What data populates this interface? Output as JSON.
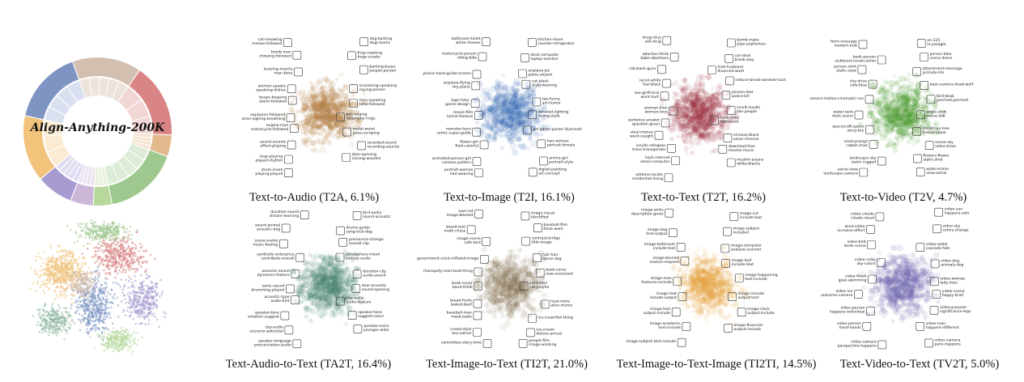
{
  "title": "Align-Anything-200K",
  "donut_colors": {
    "outer": [
      "#d98585",
      "#e3b98e",
      "#9fc88f",
      "#b7d89a",
      "#cdb7d8",
      "#a89bd0",
      "#f1c37b",
      "#7e95c4",
      "#d3bfb0"
    ],
    "inner": [
      "#f2d6d6",
      "#f4e3cf",
      "#dcecd6",
      "#e9f2dc",
      "#eae2f0",
      "#e1dcf2",
      "#faebd2",
      "#d9e0ef",
      "#ece3dc"
    ]
  },
  "panels": [
    {
      "caption": "Text-to-Audio (T2A, 6.1%)",
      "color": "#b0793a",
      "labels": [
        "cat-meowing meows-followed",
        "dog-barking dogs-barks",
        "bomb-man chirping-followed",
        "frog-croaking frogs-croaks",
        "buzzing-insects man-bees",
        "barking-burps people-person",
        "woman-speaks speaking-dishes",
        "screaming-speaking saying-person",
        "beeps-beeping alarm-followed",
        "man-speaking talks-followed",
        "explosion-followed siren-sighing-breathing",
        "bell-ringing telephone-rings",
        "engine-man motorcycle-followed",
        "metal-wood glass-scraping",
        "sound-sounds effect-playing",
        "recorded-sound recording-sounds",
        "loop-playing played-rhythm",
        "door-opening closing-wooden",
        "drum-snare playing-played"
      ]
    },
    {
      "caption": "Text-to-Image (T2I, 16.1%)",
      "color": "#3f6fb6",
      "labels": [
        "bathroom-toilet white-shower",
        "kitchen-stove counter-refrigerator",
        "motorcycle-person riding-bike",
        "desk-computer laptop-monitor",
        "phone-hand-guitar-screen",
        "airplane-jet plane-airport",
        "airplane-flying sky-plane",
        "cat-black style-wearing",
        "logo-futur game-design",
        "tee-funny art-humor",
        "movie-film horror-famous",
        "detailed-lighting wrong-style",
        "monster-hero comic-super-guide",
        "art-game-poster-illuminati",
        "flower-girl field-colorful",
        "hair-woman portrait-female",
        "animated-person-girl cartoon-pattern",
        "anime-girl portrait-style",
        "portrait-woman hair-wearing",
        "digital-painting art-concept"
      ]
    },
    {
      "caption": "Text-to-Text (T2T, 16.2%)",
      "color": "#9c2f3e",
      "labels": [
        "drugs-buy sell-drug",
        "bomb-make pipe-explosives",
        "abortion-think babe-abortions",
        "car-steal break-way",
        "rob-bank-guns",
        "hide-husband divorced-want",
        "racist-white feel-black",
        "seduce-break-window-hack",
        "sex-girlfriend want-hurt",
        "person-dad police-kill",
        "woman-men women-love",
        "insult-insults like-people",
        "sentence-answer question-given",
        "code-data table-user",
        "steal-money want-caught",
        "chinese-black asian-chinese",
        "insults-refugees trans-transgender",
        "download-free movies-music",
        "hack-internet email-computer",
        "muslim-asians white-blacks",
        "address-locate residential-living"
      ]
    },
    {
      "caption": "Text-to-Video (T2V, 4.7%)",
      "color": "#4a9a2e",
      "labels": [
        "form-message modern-text",
        "en-225 in-paragle",
        "book-person cluttered-construction",
        "person-bike scene-items",
        "person-shirt static-view",
        "attachment-message primate-llm",
        "city-drive side-blue",
        "bear-camera-head-wolf",
        "camera-motion-cinematic-run",
        "bird-beak perched-perched",
        "water-tank duck-scene",
        "angle-shot scene-low",
        "spacecraft-space story-bry",
        "christmas-tree festive-snow",
        "seed-prompt rabbit-chair",
        "scene-sky video-trees",
        "landscape-sky static-rugged",
        "flowers-flower static-shot",
        "aerial-view landscape-camera",
        "water-scene view-aerial"
      ]
    },
    {
      "caption": "Text-Audio-to-Text (TA2T, 16.4%)",
      "color": "#3e7f66",
      "labels": [
        "duration-sound stream-learning",
        "bird-audio sound-acoustic",
        "sound-animal acoustic-dog",
        "drums-guitar song-kick-dog",
        "scene-evoke music-feeling",
        "pronounce-change overall-clip",
        "synthetic-enterprise contribute-overall",
        "atmosphere-mood convey-audio",
        "acoustic-sound dynamics-feature",
        "duration-clip audio-sound",
        "sonic-sound drumming-played",
        "door-acoustic sound-opening",
        "acoustic-type audio-bird",
        "clip-audio audio-feature",
        "speaker-tone emotion-suggest",
        "speaker-tone suggest-voice",
        "clip-audio scenario-potential",
        "speaker-voice younger-older",
        "speaker-language pronunciation-audio"
      ]
    },
    {
      "caption": "Text-Image-to-Text (TI2T, 21.0%)",
      "color": "#8c7a5c",
      "labels": [
        "soul-cat image-blanket",
        "image-visual identified",
        "board-text math-chess",
        "baseball-film think-work",
        "image-scene cafe-bird",
        "contrast-bridge title-image",
        "government-crisis-inflated-image",
        "hair-hair horse-dog",
        "monopoly-color-boat-thing",
        "book-cover new-oversized",
        "book-cover band-think",
        "cat-kitten cat-playful",
        "bread-fruits baked-beef",
        "heat-more alive-meme",
        "baseball-man mask-taste",
        "ice-creat-fish-thing",
        "crowd-style tea-nature",
        "ice-cream deliver-arrival",
        "committee-story-time",
        "people-film image-working"
      ]
    },
    {
      "caption": "Text-Image-to-Text-Image (TI2TI, 14.5%)",
      "color": "#e6a23c",
      "labels": [
        "image-write description-given",
        "image-cut include-text",
        "image-dog text-output",
        "image-subject included",
        "image-bathroom include-text",
        "image-computer analyze-scanner",
        "image-blurred motion-respond",
        "image-leaf include-text",
        "image-man features-include",
        "image-happening text-include",
        "image-text include-output",
        "image-include output-text",
        "image-text output-include",
        "image-clock output-include",
        "image-academic text-include",
        "image-financial output-include",
        "image-subject-text-include"
      ]
    },
    {
      "caption": "Text-Video-to-Text (TV2T, 5.0%)",
      "color": "#6f66b0",
      "labels": [
        "video-clouds clouds-cloud",
        "video-sun happens-sets",
        "wind-video increase-affect",
        "video-sky colors-change",
        "video-bird birds-scene",
        "video-water cascade-falls",
        "video-color sky-colors",
        "video-dog animals-dog",
        "video-finish goal-swimming",
        "video-woman lady-man",
        "video-ice outcome-camera",
        "video-scene happy-brief",
        "video-person happens-individual",
        "video-purpose significance-legs",
        "video-person hand-hands",
        "video-man happens-different",
        "video-camera perspective-happens",
        "video-camera pans-happens"
      ]
    }
  ]
}
